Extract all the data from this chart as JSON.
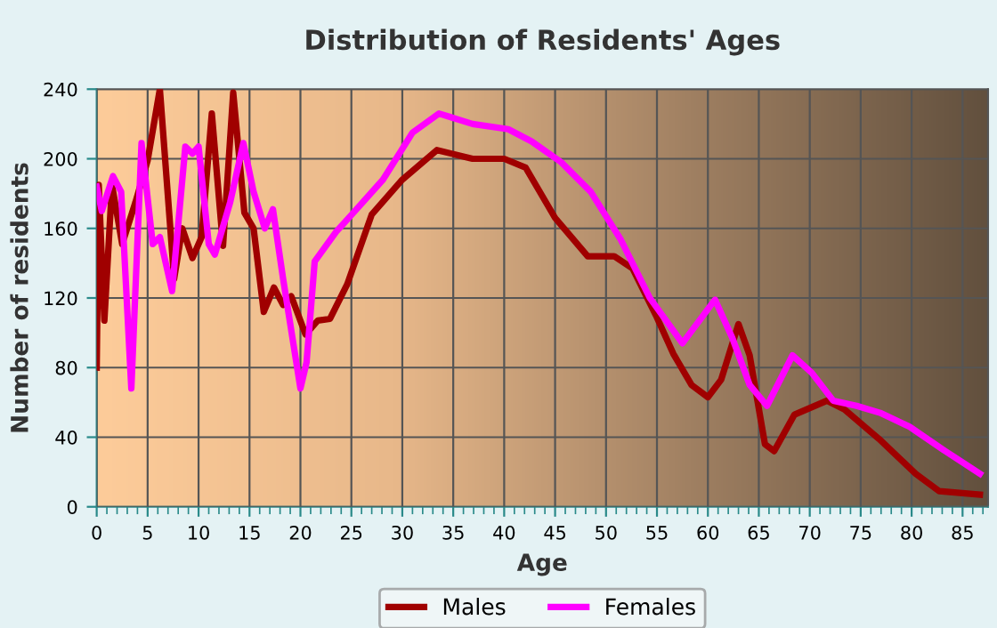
{
  "chart_data": {
    "type": "line",
    "title": "Distribution of Residents' Ages",
    "xlabel": "Age",
    "ylabel": "Number of residents",
    "xlim": [
      0,
      87.5
    ],
    "xticks": [
      0,
      5,
      10,
      15,
      20,
      25,
      30,
      35,
      40,
      45,
      50,
      55,
      60,
      65,
      70,
      75,
      80,
      85
    ],
    "ylim": [
      0,
      240
    ],
    "yticks": [
      0,
      40,
      80,
      120,
      160,
      200,
      240
    ],
    "grid": true,
    "legend": "bottom",
    "line_style": "solid",
    "marker": "none",
    "series": [
      {
        "name": "Males",
        "color": "#a00000",
        "x": [
          0,
          0.2,
          0.75,
          1.5,
          2.5,
          3.8,
          5,
          6.2,
          7.6,
          8.4,
          9.4,
          10.3,
          11.3,
          12.4,
          13.4,
          14.5,
          15.4,
          16.4,
          17.4,
          18.3,
          19.1,
          20.5,
          21.7,
          22.9,
          24.6,
          27,
          30,
          33.4,
          36.9,
          40,
          42.1,
          45,
          48.2,
          50.8,
          52.6,
          54.9,
          56.6,
          58.4,
          60,
          61.3,
          63,
          64.1,
          65.6,
          66.5,
          68.5,
          71.7,
          73.4,
          76.8,
          80.4,
          82.7,
          86.7
        ],
        "values": [
          80,
          185,
          107,
          185,
          151,
          175,
          199,
          240,
          131,
          160,
          143,
          155,
          226,
          150,
          238,
          169,
          160,
          112,
          126,
          116,
          121,
          99,
          107,
          108,
          128,
          168,
          188,
          205,
          200,
          200,
          195,
          166,
          144,
          144,
          137,
          110,
          88,
          70,
          63,
          73,
          105,
          87,
          36,
          32,
          53,
          61,
          56,
          39,
          19,
          9,
          7
        ]
      },
      {
        "name": "Females",
        "color": "#ff00ff",
        "x": [
          0,
          0.5,
          1.6,
          2.4,
          3.4,
          4.4,
          5.5,
          6.2,
          7.4,
          8.7,
          9.4,
          10,
          11,
          11.6,
          13.1,
          14.4,
          15.4,
          16.5,
          17.3,
          18.3,
          20,
          20.6,
          21.4,
          23.5,
          25.2,
          28.1,
          31,
          33.6,
          36.9,
          40.4,
          42.7,
          45.6,
          48.5,
          51.4,
          54.3,
          57.5,
          60.7,
          62.4,
          64.1,
          65.8,
          68.3,
          70.2,
          72.3,
          74.6,
          76.9,
          79.8,
          83.3,
          86.7
        ],
        "values": [
          184,
          170,
          190,
          181,
          68,
          209,
          151,
          155,
          124,
          207,
          203,
          207,
          151,
          145,
          175,
          209,
          181,
          160,
          171,
          131,
          68,
          83,
          141,
          158,
          169,
          188,
          215,
          226,
          220,
          217,
          210,
          198,
          181,
          154,
          120,
          94,
          119,
          97,
          70,
          58,
          87,
          77,
          61,
          58,
          54,
          46,
          32,
          19
        ]
      }
    ]
  }
}
